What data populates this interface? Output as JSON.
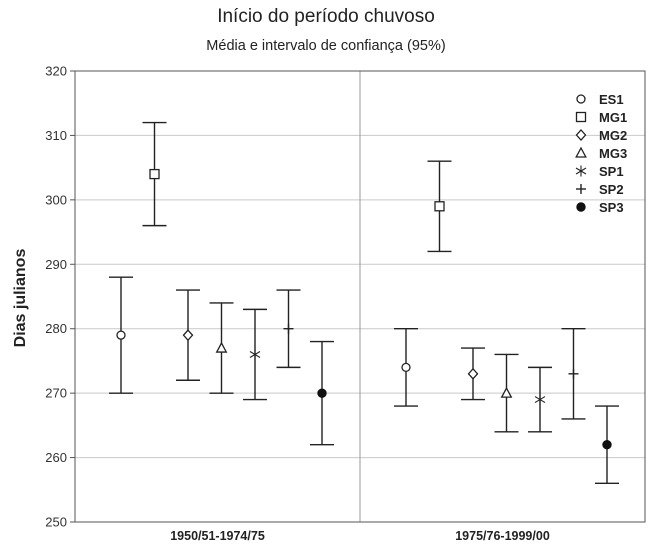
{
  "chart_data": {
    "type": "scatter",
    "title": "Início do período chuvoso",
    "subtitle": "Média e intervalo de confiança (95%)",
    "xlabel": "",
    "ylabel": "Dias julianos",
    "ylim": [
      250,
      320
    ],
    "yticks": [
      250,
      260,
      270,
      280,
      290,
      300,
      310,
      320
    ],
    "categories": [
      "1950/51-1974/75",
      "1975/76-1999/00"
    ],
    "grid": true,
    "legend_position": "top-right",
    "series": [
      {
        "name": "ES1",
        "marker": "circle-open",
        "values": [
          {
            "mean": 279,
            "low": 270,
            "high": 288
          },
          {
            "mean": 274,
            "low": 268,
            "high": 280
          }
        ]
      },
      {
        "name": "MG1",
        "marker": "square-open",
        "values": [
          {
            "mean": 304,
            "low": 296,
            "high": 312
          },
          {
            "mean": 299,
            "low": 292,
            "high": 306
          }
        ]
      },
      {
        "name": "MG2",
        "marker": "diamond-open",
        "values": [
          {
            "mean": 279,
            "low": 272,
            "high": 286
          },
          {
            "mean": 273,
            "low": 269,
            "high": 277
          }
        ]
      },
      {
        "name": "MG3",
        "marker": "triangle-open",
        "values": [
          {
            "mean": 277,
            "low": 270,
            "high": 284
          },
          {
            "mean": 270,
            "low": 264,
            "high": 276
          }
        ]
      },
      {
        "name": "SP1",
        "marker": "asterisk",
        "values": [
          {
            "mean": 276,
            "low": 269,
            "high": 283
          },
          {
            "mean": 269,
            "low": 264,
            "high": 274
          }
        ]
      },
      {
        "name": "SP2",
        "marker": "plus",
        "values": [
          {
            "mean": 280,
            "low": 274,
            "high": 286
          },
          {
            "mean": 273,
            "low": 266,
            "high": 280
          }
        ]
      },
      {
        "name": "SP3",
        "marker": "circle-filled",
        "values": [
          {
            "mean": 270,
            "low": 262,
            "high": 278
          },
          {
            "mean": 262,
            "low": 256,
            "high": 268
          }
        ]
      }
    ]
  }
}
